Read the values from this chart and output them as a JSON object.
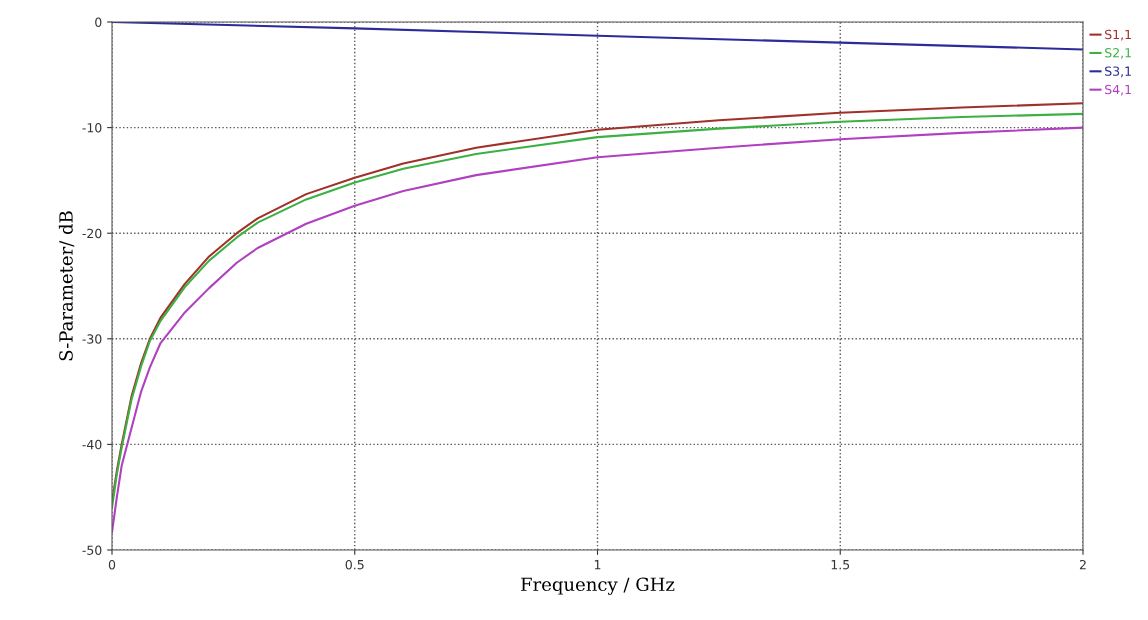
{
  "chart_data": {
    "type": "line",
    "xlabel": "Frequency / GHz",
    "ylabel": "S-Parameter/ dB",
    "x": [
      0,
      0.01,
      0.02,
      0.04,
      0.06,
      0.078,
      0.1,
      0.15,
      0.2,
      0.257,
      0.3,
      0.4,
      0.5,
      0.6,
      0.75,
      1.0,
      1.25,
      1.5,
      1.75,
      2.0
    ],
    "series": [
      {
        "name": "S1,1",
        "color": "#a0302a",
        "values": [
          -45.5,
          -42.5,
          -40,
          -35.5,
          -32.3,
          -30,
          -28,
          -24.8,
          -22.2,
          -20,
          -18.6,
          -16.3,
          -14.75,
          -13.4,
          -11.9,
          -10.2,
          -9.3,
          -8.6,
          -8.1,
          -7.7
        ]
      },
      {
        "name": "S2,1",
        "color": "#3cb043",
        "values": [
          -46,
          -42.8,
          -40.3,
          -35.8,
          -32.6,
          -30.2,
          -28.3,
          -25.1,
          -22.6,
          -20.4,
          -19.0,
          -16.8,
          -15.2,
          -13.9,
          -12.5,
          -10.9,
          -10.1,
          -9.45,
          -9.0,
          -8.7
        ]
      },
      {
        "name": "S3,1",
        "color": "#2b2b9a",
        "x": [
          0,
          0.5,
          1.0,
          1.5,
          2.0
        ],
        "values": [
          0,
          -0.6,
          -1.3,
          -1.95,
          -2.6
        ]
      },
      {
        "name": "S4,1",
        "color": "#b040c0",
        "values": [
          -48.3,
          -45,
          -42,
          -38.5,
          -35,
          -32.7,
          -30.4,
          -27.5,
          -25.2,
          -22.8,
          -21.4,
          -19.1,
          -17.4,
          -16.0,
          -14.5,
          -12.8,
          -11.9,
          -11.1,
          -10.5,
          -10.0
        ]
      }
    ],
    "xlim": [
      0,
      2
    ],
    "xticks": [
      0,
      0.5,
      1,
      1.5,
      2
    ],
    "ylim": [
      -50,
      0
    ],
    "yticks": [
      0,
      -10,
      -20,
      -30,
      -40,
      -50
    ],
    "grid": true,
    "legend": "top right",
    "line_style": "solid",
    "marker": "none"
  }
}
